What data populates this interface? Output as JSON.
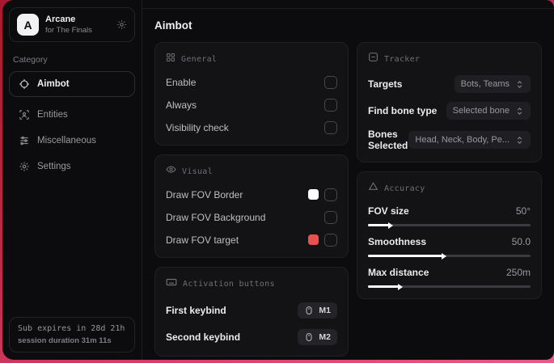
{
  "sidebar": {
    "brand": {
      "logo_letter": "A",
      "name": "Arcane",
      "subtitle": "for The Finals"
    },
    "category_label": "Category",
    "items": [
      {
        "label": "Aimbot",
        "icon": "crosshair-icon",
        "active": true
      },
      {
        "label": "Entities",
        "icon": "entities-icon",
        "active": false
      },
      {
        "label": "Miscellaneous",
        "icon": "sliders-icon",
        "active": false
      },
      {
        "label": "Settings",
        "icon": "gear-icon",
        "active": false
      }
    ],
    "footer": {
      "line1": "Sub expires in 28d 21h",
      "line2": "session duration 31m 11s"
    }
  },
  "main": {
    "title": "Aimbot",
    "general": {
      "title": "General",
      "rows": [
        {
          "label": "Enable",
          "checked": false
        },
        {
          "label": "Always",
          "checked": false
        },
        {
          "label": "Visibility check",
          "checked": false
        }
      ]
    },
    "visual": {
      "title": "Visual",
      "rows": [
        {
          "label": "Draw FOV Border",
          "swatch": "#ffffff",
          "checked": false
        },
        {
          "label": "Draw FOV Background",
          "swatch": null,
          "checked": false
        },
        {
          "label": "Draw FOV target",
          "swatch": "#f04e4e",
          "checked": false
        }
      ]
    },
    "activation": {
      "title": "Activation buttons",
      "rows": [
        {
          "label": "First keybind",
          "key": "M1"
        },
        {
          "label": "Second keybind",
          "key": "M2"
        }
      ]
    },
    "tracker": {
      "title": "Tracker",
      "rows": [
        {
          "label": "Targets",
          "value": "Bots, Teams"
        },
        {
          "label": "Find bone type",
          "value": "Selected bone"
        },
        {
          "label": "Bones Selected",
          "value": "Head, Neck, Body, Pe..."
        }
      ]
    },
    "accuracy": {
      "title": "Accuracy",
      "rows": [
        {
          "label": "FOV size",
          "value": "50°",
          "percent": 13
        },
        {
          "label": "Smoothness",
          "value": "50.0",
          "percent": 46
        },
        {
          "label": "Max distance",
          "value": "250m",
          "percent": 19
        }
      ]
    }
  },
  "colors": {
    "accent_red": "#f04e4e",
    "swatch_white": "#ffffff",
    "desktop_top": "#a8182f",
    "desktop_bottom": "#e85b86",
    "window_bg": "#0c0c0e",
    "card_bg": "#131316"
  }
}
